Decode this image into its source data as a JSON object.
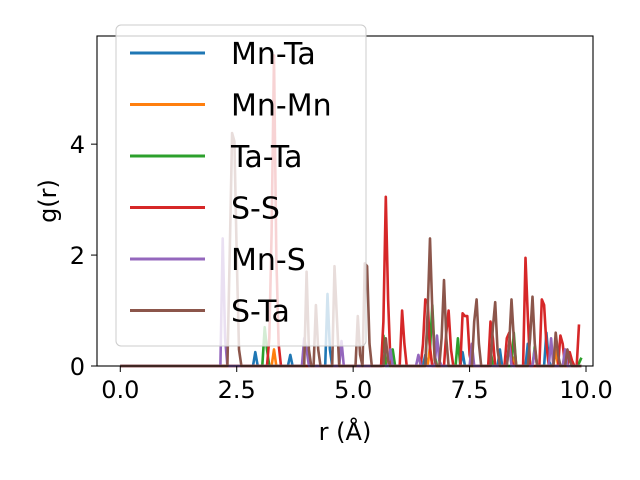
{
  "chart_data": {
    "type": "line",
    "xlabel": "r (Å)",
    "ylabel": "g(r)",
    "xlim": [
      -0.5,
      10.15
    ],
    "ylim": [
      0,
      5.95
    ],
    "xticks": [
      "0.0",
      "2.5",
      "5.0",
      "7.5",
      "10.0"
    ],
    "xtick_values": [
      0,
      2.5,
      5.0,
      7.5,
      10.0
    ],
    "yticks": [
      "0",
      "2",
      "4"
    ],
    "ytick_values": [
      0,
      2,
      4
    ],
    "grid": false,
    "legend_position": "upper-left",
    "series": [
      {
        "name": "Mn-Ta",
        "color": "#1f77b4",
        "points": [
          [
            0,
            0
          ],
          [
            2.85,
            0
          ],
          [
            2.9,
            0.25
          ],
          [
            2.95,
            0
          ],
          [
            3.6,
            0
          ],
          [
            3.65,
            0.2
          ],
          [
            3.7,
            0
          ],
          [
            4.4,
            0
          ],
          [
            4.45,
            1.3
          ],
          [
            4.5,
            0.3
          ],
          [
            4.55,
            0
          ],
          [
            5.6,
            0
          ],
          [
            5.65,
            0.15
          ],
          [
            5.7,
            0
          ],
          [
            6.5,
            0
          ],
          [
            6.55,
            0.2
          ],
          [
            6.6,
            0
          ],
          [
            7.3,
            0
          ],
          [
            7.35,
            0.25
          ],
          [
            7.4,
            0
          ],
          [
            8.1,
            0
          ],
          [
            8.15,
            0.3
          ],
          [
            8.2,
            0
          ],
          [
            8.7,
            0
          ],
          [
            8.75,
            0.4
          ],
          [
            8.8,
            0
          ],
          [
            9.1,
            0
          ],
          [
            9.15,
            0.6
          ],
          [
            9.2,
            0.1
          ],
          [
            9.25,
            0
          ],
          [
            9.9,
            0
          ]
        ]
      },
      {
        "name": "Mn-Mn",
        "color": "#ff7f0e",
        "points": [
          [
            0,
            0
          ],
          [
            3.25,
            0
          ],
          [
            3.3,
            0.3
          ],
          [
            3.35,
            0
          ],
          [
            5.7,
            0
          ],
          [
            5.75,
            0.2
          ],
          [
            5.8,
            0
          ],
          [
            6.6,
            0
          ],
          [
            6.65,
            0.35
          ],
          [
            6.7,
            0
          ],
          [
            8.4,
            0
          ],
          [
            8.45,
            0.15
          ],
          [
            8.5,
            0
          ],
          [
            9.3,
            0
          ],
          [
            9.35,
            0.3
          ],
          [
            9.4,
            0
          ],
          [
            9.9,
            0
          ]
        ]
      },
      {
        "name": "Ta-Ta",
        "color": "#2ca02c",
        "points": [
          [
            0,
            0
          ],
          [
            3.05,
            0
          ],
          [
            3.1,
            0.7
          ],
          [
            3.15,
            0.3
          ],
          [
            3.2,
            0
          ],
          [
            5.6,
            0
          ],
          [
            5.65,
            0.55
          ],
          [
            5.7,
            0
          ],
          [
            5.8,
            0
          ],
          [
            5.85,
            0.3
          ],
          [
            5.9,
            0
          ],
          [
            6.55,
            0
          ],
          [
            6.6,
            0.9
          ],
          [
            6.65,
            0.3
          ],
          [
            6.7,
            1.1
          ],
          [
            6.75,
            0.2
          ],
          [
            6.8,
            0
          ],
          [
            7.2,
            0
          ],
          [
            7.25,
            0.5
          ],
          [
            7.3,
            0
          ],
          [
            7.9,
            0
          ],
          [
            7.95,
            0.3
          ],
          [
            8.0,
            0
          ],
          [
            8.4,
            0
          ],
          [
            8.45,
            0.6
          ],
          [
            8.5,
            0
          ],
          [
            8.85,
            0
          ],
          [
            8.9,
            0.35
          ],
          [
            8.95,
            0
          ],
          [
            9.5,
            0
          ],
          [
            9.55,
            0.2
          ],
          [
            9.6,
            0
          ],
          [
            9.8,
            0
          ],
          [
            9.85,
            0.05
          ],
          [
            9.9,
            0.15
          ]
        ]
      },
      {
        "name": "S-S",
        "color": "#d62728",
        "points": [
          [
            0,
            0
          ],
          [
            3.15,
            0
          ],
          [
            3.2,
            0.5
          ],
          [
            3.25,
            2.4
          ],
          [
            3.3,
            5.6
          ],
          [
            3.35,
            2.0
          ],
          [
            3.4,
            0.4
          ],
          [
            3.45,
            0
          ],
          [
            5.6,
            0
          ],
          [
            5.65,
            0.8
          ],
          [
            5.7,
            3.05
          ],
          [
            5.75,
            1.2
          ],
          [
            5.8,
            0.1
          ],
          [
            5.85,
            0
          ],
          [
            6.0,
            0
          ],
          [
            6.05,
            1.0
          ],
          [
            6.1,
            0.4
          ],
          [
            6.15,
            0
          ],
          [
            6.45,
            0
          ],
          [
            6.5,
            0.4
          ],
          [
            6.55,
            1.2
          ],
          [
            6.6,
            1.15
          ],
          [
            6.65,
            0.3
          ],
          [
            6.7,
            0
          ],
          [
            6.95,
            0
          ],
          [
            7.0,
            0.6
          ],
          [
            7.05,
            1.0
          ],
          [
            7.1,
            0.3
          ],
          [
            7.15,
            0
          ],
          [
            7.3,
            0
          ],
          [
            7.35,
            0.95
          ],
          [
            7.4,
            0.9
          ],
          [
            7.45,
            0.9
          ],
          [
            7.5,
            0.2
          ],
          [
            7.55,
            0
          ],
          [
            7.9,
            0
          ],
          [
            7.95,
            0.8
          ],
          [
            8.0,
            0.5
          ],
          [
            8.05,
            0
          ],
          [
            8.25,
            0
          ],
          [
            8.3,
            0.5
          ],
          [
            8.35,
            0.6
          ],
          [
            8.4,
            0.1
          ],
          [
            8.45,
            0
          ],
          [
            8.65,
            0
          ],
          [
            8.7,
            1.95
          ],
          [
            8.75,
            0.9
          ],
          [
            8.8,
            0
          ],
          [
            9.0,
            0
          ],
          [
            9.05,
            1.2
          ],
          [
            9.1,
            1.1
          ],
          [
            9.15,
            0.4
          ],
          [
            9.2,
            0
          ],
          [
            9.4,
            0
          ],
          [
            9.45,
            0.55
          ],
          [
            9.5,
            0.4
          ],
          [
            9.55,
            0
          ],
          [
            9.6,
            0
          ],
          [
            9.65,
            0.25
          ],
          [
            9.7,
            0.1
          ],
          [
            9.75,
            0
          ],
          [
            9.8,
            0
          ],
          [
            9.85,
            0.75
          ]
        ]
      },
      {
        "name": "Mn-S",
        "color": "#9467bd",
        "points": [
          [
            0,
            0
          ],
          [
            2.15,
            0
          ],
          [
            2.2,
            2.3
          ],
          [
            2.25,
            0.5
          ],
          [
            2.3,
            0
          ],
          [
            3.9,
            0
          ],
          [
            3.95,
            0.5
          ],
          [
            4.0,
            0.3
          ],
          [
            4.05,
            0
          ],
          [
            4.7,
            0
          ],
          [
            4.75,
            0.45
          ],
          [
            4.8,
            0
          ],
          [
            5.75,
            0
          ],
          [
            5.8,
            0.3
          ],
          [
            5.85,
            0
          ],
          [
            6.35,
            0
          ],
          [
            6.4,
            0.2
          ],
          [
            6.45,
            0
          ],
          [
            6.75,
            0
          ],
          [
            6.8,
            0.55
          ],
          [
            6.85,
            0.1
          ],
          [
            6.9,
            0
          ],
          [
            7.5,
            0
          ],
          [
            7.55,
            0.4
          ],
          [
            7.6,
            0
          ],
          [
            8.3,
            0
          ],
          [
            8.35,
            0.4
          ],
          [
            8.4,
            0
          ],
          [
            8.85,
            0
          ],
          [
            8.9,
            0.3
          ],
          [
            8.95,
            0
          ],
          [
            9.2,
            0
          ],
          [
            9.25,
            0.5
          ],
          [
            9.3,
            0
          ],
          [
            9.5,
            0
          ],
          [
            9.55,
            0.3
          ],
          [
            9.6,
            0
          ],
          [
            9.9,
            0
          ]
        ]
      },
      {
        "name": "S-Ta",
        "color": "#8c564b",
        "points": [
          [
            0,
            0
          ],
          [
            2.3,
            0
          ],
          [
            2.35,
            2.0
          ],
          [
            2.4,
            4.2
          ],
          [
            2.45,
            4.05
          ],
          [
            2.5,
            2.0
          ],
          [
            2.55,
            0.3
          ],
          [
            2.6,
            0
          ],
          [
            3.95,
            0
          ],
          [
            4.0,
            1.7
          ],
          [
            4.05,
            0.3
          ],
          [
            4.1,
            0
          ],
          [
            4.15,
            0
          ],
          [
            4.2,
            1.1
          ],
          [
            4.25,
            0.3
          ],
          [
            4.3,
            0
          ],
          [
            4.55,
            0
          ],
          [
            4.6,
            1.8
          ],
          [
            4.65,
            0.9
          ],
          [
            4.7,
            0
          ],
          [
            5.05,
            0
          ],
          [
            5.1,
            0.9
          ],
          [
            5.15,
            0.2
          ],
          [
            5.2,
            0
          ],
          [
            5.25,
            1.85
          ],
          [
            5.3,
            1.8
          ],
          [
            5.35,
            0.4
          ],
          [
            5.4,
            0
          ],
          [
            5.65,
            0
          ],
          [
            5.7,
            0.5
          ],
          [
            5.75,
            0.1
          ],
          [
            5.8,
            0
          ],
          [
            6.55,
            0
          ],
          [
            6.6,
            1.0
          ],
          [
            6.65,
            2.3
          ],
          [
            6.7,
            1.0
          ],
          [
            6.75,
            0.1
          ],
          [
            6.8,
            0
          ],
          [
            6.85,
            0
          ],
          [
            6.9,
            0.5
          ],
          [
            6.95,
            1.55
          ],
          [
            7.0,
            0.5
          ],
          [
            7.05,
            0
          ],
          [
            7.55,
            0
          ],
          [
            7.6,
            0.8
          ],
          [
            7.65,
            1.2
          ],
          [
            7.7,
            0.4
          ],
          [
            7.75,
            0
          ],
          [
            7.95,
            0
          ],
          [
            8.0,
            0.7
          ],
          [
            8.05,
            1.15
          ],
          [
            8.1,
            0.3
          ],
          [
            8.15,
            0
          ],
          [
            8.3,
            0
          ],
          [
            8.35,
            0.4
          ],
          [
            8.4,
            1.2
          ],
          [
            8.45,
            0.5
          ],
          [
            8.5,
            0
          ],
          [
            8.75,
            0
          ],
          [
            8.8,
            0.5
          ],
          [
            8.85,
            1.25
          ],
          [
            8.9,
            0.4
          ],
          [
            8.95,
            0
          ],
          [
            9.3,
            0
          ],
          [
            9.35,
            0.6
          ],
          [
            9.4,
            0.2
          ],
          [
            9.45,
            0
          ],
          [
            9.55,
            0
          ],
          [
            9.6,
            0.3
          ],
          [
            9.65,
            0.1
          ],
          [
            9.7,
            0
          ],
          [
            9.9,
            0
          ]
        ]
      }
    ]
  }
}
